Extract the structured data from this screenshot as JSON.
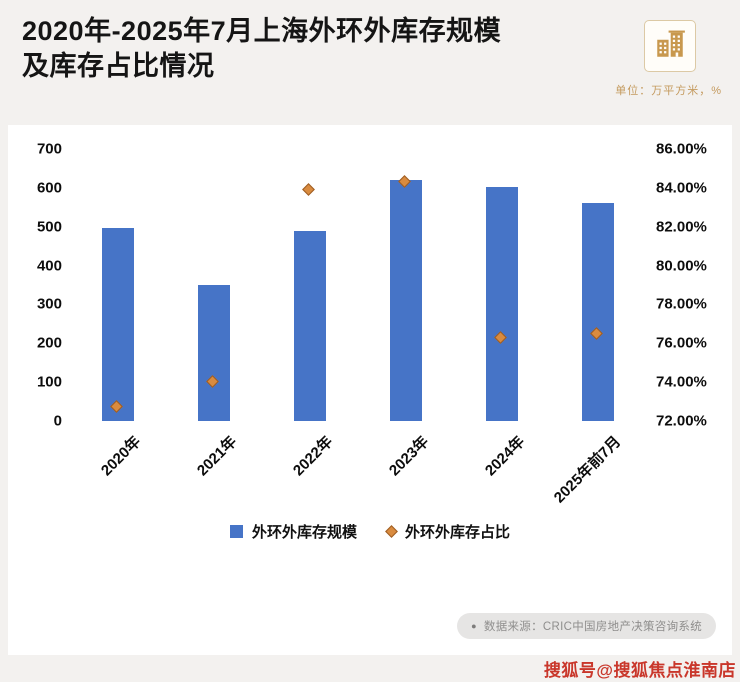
{
  "header": {
    "title_line1": "2020年-2025年7月上海外环外库存规模",
    "title_line2": "及库存占比情况",
    "unit_note": "单位：万平方米，%"
  },
  "chart_data": {
    "type": "bar",
    "categories": [
      "2020年",
      "2021年",
      "2022年",
      "2023年",
      "2024年",
      "2025年前7月"
    ],
    "series": [
      {
        "name": "外环外库存规模",
        "type": "bar",
        "axis": "left",
        "values": [
          497,
          350,
          488,
          620,
          603,
          560
        ],
        "color": "#4674c7"
      },
      {
        "name": "外环外库存占比",
        "type": "scatter",
        "axis": "right",
        "values": [
          72.8,
          74.1,
          84.0,
          84.4,
          76.4,
          76.6
        ],
        "color": "#d98b3f",
        "edge_color": "#9c5b22"
      }
    ],
    "left_axis": {
      "min": 0,
      "max": 700,
      "ticks": [
        700,
        600,
        500,
        400,
        300,
        200,
        100,
        0
      ]
    },
    "right_axis": {
      "min": 72,
      "max": 86,
      "ticks": [
        "86.00%",
        "84.00%",
        "82.00%",
        "80.00%",
        "78.00%",
        "76.00%",
        "74.00%",
        "72.00%"
      ]
    },
    "grid": false,
    "legend_position": "bottom",
    "title": "2020年-2025年7月上海外环外库存规模及库存占比情况",
    "xlabel": "",
    "ylabel": ""
  },
  "legend": {
    "items": [
      {
        "label": "外环外库存规模",
        "marker": "square",
        "color": "#4674c7"
      },
      {
        "label": "外环外库存占比",
        "marker": "diamond",
        "color": "#d98b3f"
      }
    ]
  },
  "source": {
    "bullet": "●",
    "text": "数据来源：CRIC中国房地产决策咨询系统"
  },
  "footer": {
    "watermark": "搜狐号@搜狐焦点淮南店"
  }
}
